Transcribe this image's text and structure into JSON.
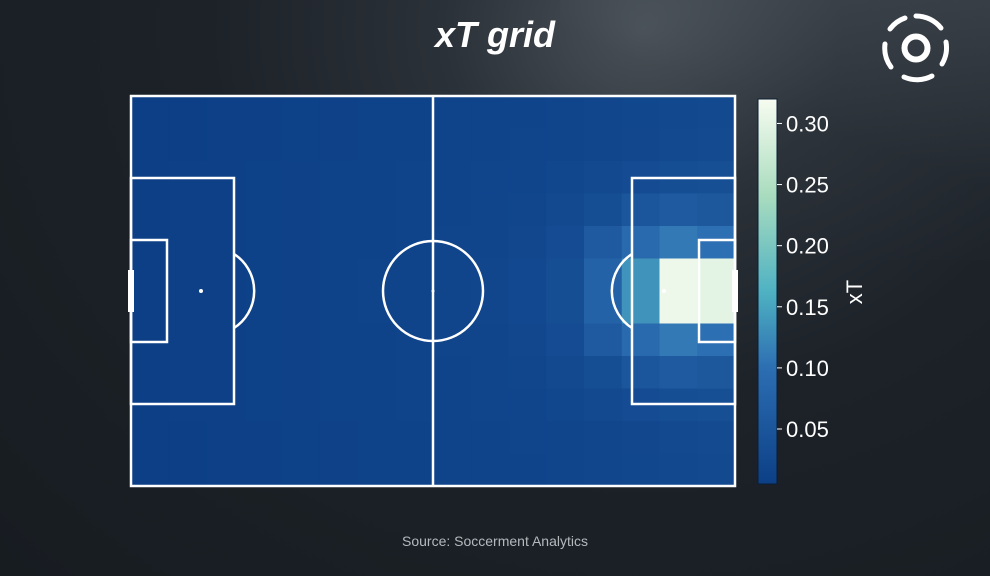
{
  "title": "xT grid",
  "source": "Source: Soccerment Analytics",
  "logo_icon": "soccerment-ball-logo",
  "colors": {
    "line": "#ffffff",
    "low": "#0c3f86",
    "mid1": "#2c6eb2",
    "mid2": "#4fb2c2",
    "mid3": "#a9dcbf",
    "high": "#f7fcf0"
  },
  "chart_data": {
    "type": "heatmap",
    "title": "xT grid",
    "colorbar": {
      "label": "xT",
      "range": [
        0.005,
        0.32
      ],
      "ticks": [
        0.05,
        0.1,
        0.15,
        0.2,
        0.25,
        0.3
      ],
      "tick_labels": [
        "0.05",
        "0.10",
        "0.15",
        "0.20",
        "0.25",
        "0.30"
      ]
    },
    "grid": {
      "cols": 16,
      "rows": 12,
      "attacking_direction": "left-to-right"
    },
    "values": [
      [
        0.005,
        0.006,
        0.007,
        0.008,
        0.009,
        0.01,
        0.011,
        0.012,
        0.013,
        0.014,
        0.015,
        0.017,
        0.019,
        0.021,
        0.023,
        0.025
      ],
      [
        0.005,
        0.006,
        0.007,
        0.008,
        0.009,
        0.01,
        0.011,
        0.012,
        0.013,
        0.014,
        0.016,
        0.018,
        0.02,
        0.022,
        0.025,
        0.027
      ],
      [
        0.006,
        0.007,
        0.008,
        0.009,
        0.01,
        0.011,
        0.012,
        0.013,
        0.014,
        0.016,
        0.018,
        0.021,
        0.025,
        0.03,
        0.035,
        0.038
      ],
      [
        0.006,
        0.007,
        0.008,
        0.009,
        0.01,
        0.011,
        0.012,
        0.013,
        0.015,
        0.017,
        0.02,
        0.025,
        0.035,
        0.05,
        0.06,
        0.055
      ],
      [
        0.006,
        0.007,
        0.008,
        0.009,
        0.01,
        0.011,
        0.012,
        0.014,
        0.016,
        0.018,
        0.022,
        0.03,
        0.06,
        0.09,
        0.11,
        0.1
      ],
      [
        0.006,
        0.007,
        0.008,
        0.009,
        0.01,
        0.011,
        0.013,
        0.014,
        0.016,
        0.019,
        0.024,
        0.035,
        0.075,
        0.135,
        0.31,
        0.3
      ],
      [
        0.006,
        0.007,
        0.008,
        0.009,
        0.01,
        0.011,
        0.013,
        0.014,
        0.016,
        0.019,
        0.024,
        0.035,
        0.075,
        0.135,
        0.31,
        0.3
      ],
      [
        0.006,
        0.007,
        0.008,
        0.009,
        0.01,
        0.011,
        0.012,
        0.014,
        0.016,
        0.018,
        0.022,
        0.03,
        0.06,
        0.09,
        0.11,
        0.1
      ],
      [
        0.006,
        0.007,
        0.008,
        0.009,
        0.01,
        0.011,
        0.012,
        0.013,
        0.015,
        0.017,
        0.02,
        0.025,
        0.035,
        0.05,
        0.06,
        0.055
      ],
      [
        0.006,
        0.007,
        0.008,
        0.009,
        0.01,
        0.011,
        0.012,
        0.013,
        0.014,
        0.016,
        0.018,
        0.021,
        0.025,
        0.03,
        0.035,
        0.038
      ],
      [
        0.005,
        0.006,
        0.007,
        0.008,
        0.009,
        0.01,
        0.011,
        0.012,
        0.013,
        0.014,
        0.016,
        0.018,
        0.02,
        0.022,
        0.025,
        0.027
      ],
      [
        0.005,
        0.006,
        0.007,
        0.008,
        0.009,
        0.01,
        0.011,
        0.012,
        0.013,
        0.014,
        0.015,
        0.017,
        0.019,
        0.021,
        0.023,
        0.025
      ]
    ]
  }
}
